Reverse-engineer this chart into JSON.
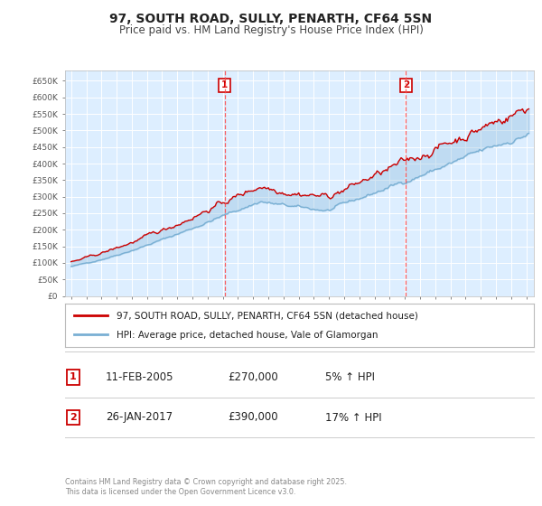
{
  "title": "97, SOUTH ROAD, SULLY, PENARTH, CF64 5SN",
  "subtitle": "Price paid vs. HM Land Registry's House Price Index (HPI)",
  "ylim": [
    0,
    680000
  ],
  "yticks": [
    0,
    50000,
    100000,
    150000,
    200000,
    250000,
    300000,
    350000,
    400000,
    450000,
    500000,
    550000,
    600000,
    650000
  ],
  "ytick_labels": [
    "£0",
    "£50K",
    "£100K",
    "£150K",
    "£200K",
    "£250K",
    "£300K",
    "£350K",
    "£400K",
    "£450K",
    "£500K",
    "£550K",
    "£600K",
    "£650K"
  ],
  "vline1_year": 2005.12,
  "vline2_year": 2017.07,
  "vline_color": "#ff4444",
  "property_color": "#cc0000",
  "hpi_color": "#7ab0d4",
  "legend_property": "97, SOUTH ROAD, SULLY, PENARTH, CF64 5SN (detached house)",
  "legend_hpi": "HPI: Average price, detached house, Vale of Glamorgan",
  "box_color": "#cc0000",
  "table_row1": [
    "1",
    "11-FEB-2005",
    "£270,000",
    "5% ↑ HPI"
  ],
  "table_row2": [
    "2",
    "26-JAN-2017",
    "£390,000",
    "17% ↑ HPI"
  ],
  "footer": "Contains HM Land Registry data © Crown copyright and database right 2025.\nThis data is licensed under the Open Government Licence v3.0.",
  "plot_bg_color": "#ddeeff",
  "fig_bg_color": "#ffffff",
  "grid_color": "#ffffff",
  "title_fontsize": 10,
  "subtitle_fontsize": 8.5,
  "tick_fontsize": 6.5
}
